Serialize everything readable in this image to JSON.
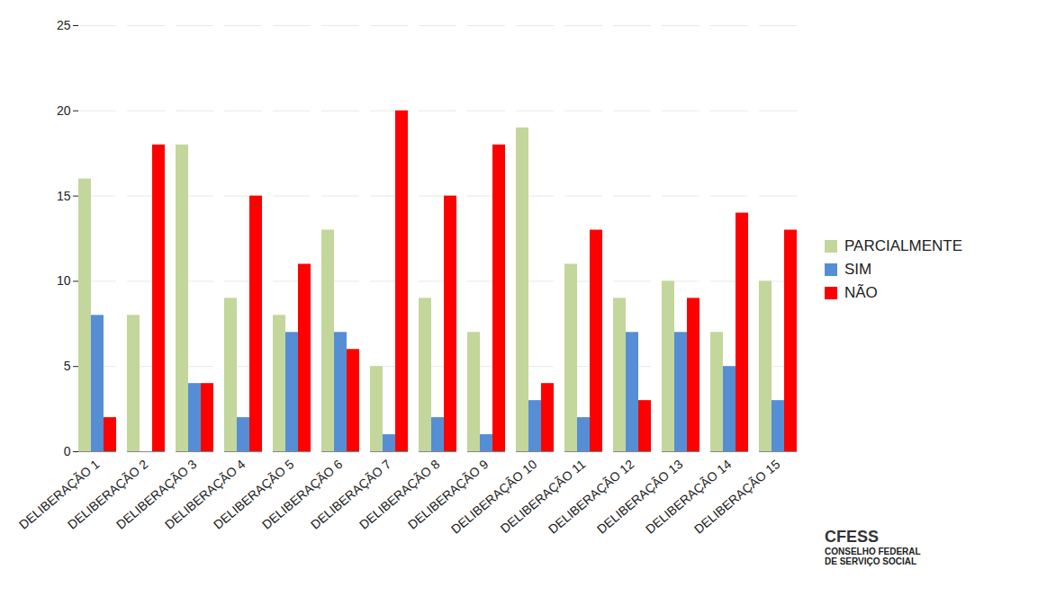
{
  "chart_data": {
    "type": "bar",
    "categories": [
      "DELIBERAÇÃO 1",
      "DELIBERAÇÃO 2",
      "DELIBERAÇÃO 3",
      "DELIBERAÇÃO 4",
      "DELIBERAÇÃO 5",
      "DELIBERAÇÃO 6",
      "DELIBERAÇÃO 7",
      "DELIBERAÇÃO 8",
      "DELIBERAÇÃO 9",
      "DELIBERAÇÃO 10",
      "DELIBERAÇÃO 11",
      "DELIBERAÇÃO 12",
      "DELIBERAÇÃO 13",
      "DELIBERAÇÃO 14",
      "DELIBERAÇÃO 15"
    ],
    "series": [
      {
        "name": "PARCIALMENTE",
        "color": "#c3d69b",
        "values": [
          16,
          8,
          18,
          9,
          8,
          13,
          5,
          9,
          7,
          19,
          11,
          9,
          10,
          7,
          10
        ]
      },
      {
        "name": "SIM",
        "color": "#558ed5",
        "values": [
          8,
          0,
          4,
          2,
          7,
          7,
          1,
          2,
          1,
          3,
          2,
          7,
          7,
          5,
          3
        ]
      },
      {
        "name": "NÃO",
        "color": "#ff0000",
        "values": [
          2,
          18,
          4,
          15,
          11,
          6,
          20,
          15,
          18,
          4,
          13,
          3,
          9,
          14,
          13
        ]
      }
    ],
    "ylim": [
      0,
      25
    ],
    "yticks": [
      0,
      5,
      10,
      15,
      20,
      25
    ],
    "grid": true,
    "legend": "right",
    "annotations": [
      "CFESS",
      "CONSELHO FEDERAL",
      "DE SERVIÇO SOCIAL"
    ]
  }
}
